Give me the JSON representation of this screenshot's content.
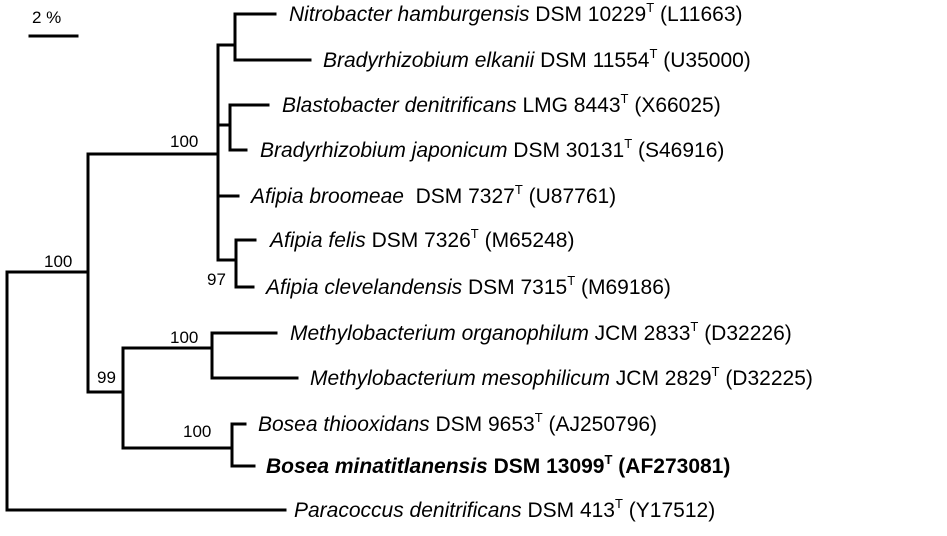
{
  "scale": {
    "label": "2 %"
  },
  "taxa": [
    {
      "genus_species": "Nitrobacter hamburgensis",
      "strain": "DSM 10229",
      "type_mark": "T",
      "accession": "(L11663)",
      "bold": false
    },
    {
      "genus_species": "Bradyrhizobium elkanii",
      "strain": "DSM 11554",
      "type_mark": "T",
      "accession": "(U35000)",
      "bold": false
    },
    {
      "genus_species": "Blastobacter denitrificans",
      "strain": "LMG 8443",
      "type_mark": "T",
      "accession": "(X66025)",
      "bold": false
    },
    {
      "genus_species": "Bradyrhizobium japonicum",
      "strain": "DSM 30131",
      "type_mark": "T",
      "accession": "(S46916)",
      "bold": false
    },
    {
      "genus_species": "Afipia broomeae",
      "strain": "DSM 7327",
      "type_mark": "T",
      "accession": "(U87761)",
      "bold": false
    },
    {
      "genus_species": "Afipia felis",
      "strain": "DSM 7326",
      "type_mark": "T",
      "accession": "(M65248)",
      "bold": false
    },
    {
      "genus_species": "Afipia clevelandensis",
      "strain": "DSM 7315",
      "type_mark": "T",
      "accession": "(M69186)",
      "bold": false
    },
    {
      "genus_species": "Methylobacterium organophilum",
      "strain": "JCM 2833",
      "type_mark": "T",
      "accession": "(D32226)",
      "bold": false
    },
    {
      "genus_species": "Methylobacterium mesophilicum",
      "strain": "JCM 2829",
      "type_mark": "T",
      "accession": "(D32225)",
      "bold": false
    },
    {
      "genus_species": "Bosea thiooxidans",
      "strain": "DSM 9653",
      "type_mark": "T",
      "accession": "(AJ250796)",
      "bold": false
    },
    {
      "genus_species": "Bosea minatitlanensis",
      "strain": "DSM 13099",
      "type_mark": "T",
      "accession": "(AF273081)",
      "bold": true
    },
    {
      "genus_species": "Paracoccus denitrificans",
      "strain": "DSM 413",
      "type_mark": "T",
      "accession": "(Y17512)",
      "bold": false
    }
  ],
  "bootstrap": {
    "bradyrhizobium_clade": "100",
    "ingroup": "100",
    "afipia_clevelandensis_pair": "97",
    "methylobacterium_clade": "100",
    "methylo_bosea_clade": "99",
    "bosea_clade": "100"
  }
}
